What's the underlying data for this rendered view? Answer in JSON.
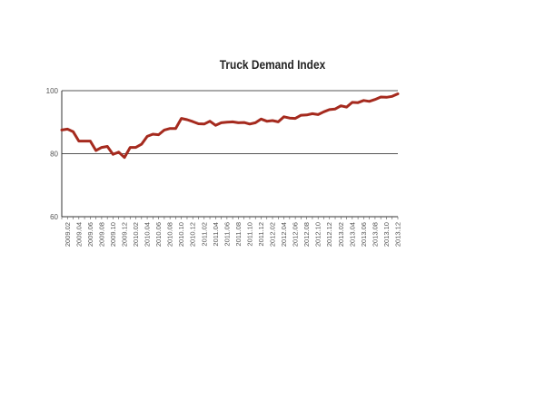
{
  "chart_data": {
    "type": "line",
    "title": "Truck Demand Index",
    "xlabel": "",
    "ylabel": "",
    "ylim": [
      60,
      100
    ],
    "yticks": [
      60,
      80,
      100
    ],
    "grid": true,
    "line_color": "#a52a1e",
    "x": [
      "2009.01",
      "2009.02",
      "2009.03",
      "2009.04",
      "2009.05",
      "2009.06",
      "2009.07",
      "2009.08",
      "2009.09",
      "2009.10",
      "2009.11",
      "2009.12",
      "2010.01",
      "2010.02",
      "2010.03",
      "2010.04",
      "2010.05",
      "2010.06",
      "2010.07",
      "2010.08",
      "2010.09",
      "2010.10",
      "2010.11",
      "2010.12",
      "2011.01",
      "2011.02",
      "2011.03",
      "2011.04",
      "2011.05",
      "2011.06",
      "2011.07",
      "2011.08",
      "2011.09",
      "2011.10",
      "2011.11",
      "2011.12",
      "2012.01",
      "2012.02",
      "2012.03",
      "2012.04",
      "2012.05",
      "2012.06",
      "2012.07",
      "2012.08",
      "2012.09",
      "2012.10",
      "2012.11",
      "2012.12",
      "2013.01",
      "2013.02",
      "2013.03",
      "2013.04",
      "2013.05",
      "2013.06",
      "2013.07",
      "2013.08",
      "2013.09",
      "2013.10",
      "2013.11",
      "2013.12"
    ],
    "values": [
      87.5,
      87.8,
      87,
      84,
      84,
      84,
      81,
      82,
      82.3,
      79.8,
      80.5,
      78.8,
      82,
      82,
      83,
      85.5,
      86.2,
      86,
      87.5,
      88,
      88,
      91.2,
      90.8,
      90.2,
      89.5,
      89.4,
      90.3,
      89,
      89.8,
      90,
      90.1,
      89.8,
      89.9,
      89.4,
      89.8,
      91,
      90.3,
      90.5,
      90.1,
      91.7,
      91.3,
      91.2,
      92.2,
      92.3,
      92.7,
      92.4,
      93.3,
      94,
      94.2,
      95.2,
      94.8,
      96.3,
      96.2,
      96.9,
      96.6,
      97.2,
      98,
      97.9,
      98.2,
      99
    ],
    "xtick_labels": [
      "2009.02",
      "2009.04",
      "2009.06",
      "2009.08",
      "2009.10",
      "2009.12",
      "2010.02",
      "2010.04",
      "2010.06",
      "2010.08",
      "2010.10",
      "2010.12",
      "2011.02",
      "2011.04",
      "2011.06",
      "2011.08",
      "2011.10",
      "2011.12",
      "2012.02",
      "2012.04",
      "2012.06",
      "2012.08",
      "2012.10",
      "2012.12",
      "2013.02",
      "2013.04",
      "2013.06",
      "2013.08",
      "2013.10",
      "2013.12"
    ]
  }
}
